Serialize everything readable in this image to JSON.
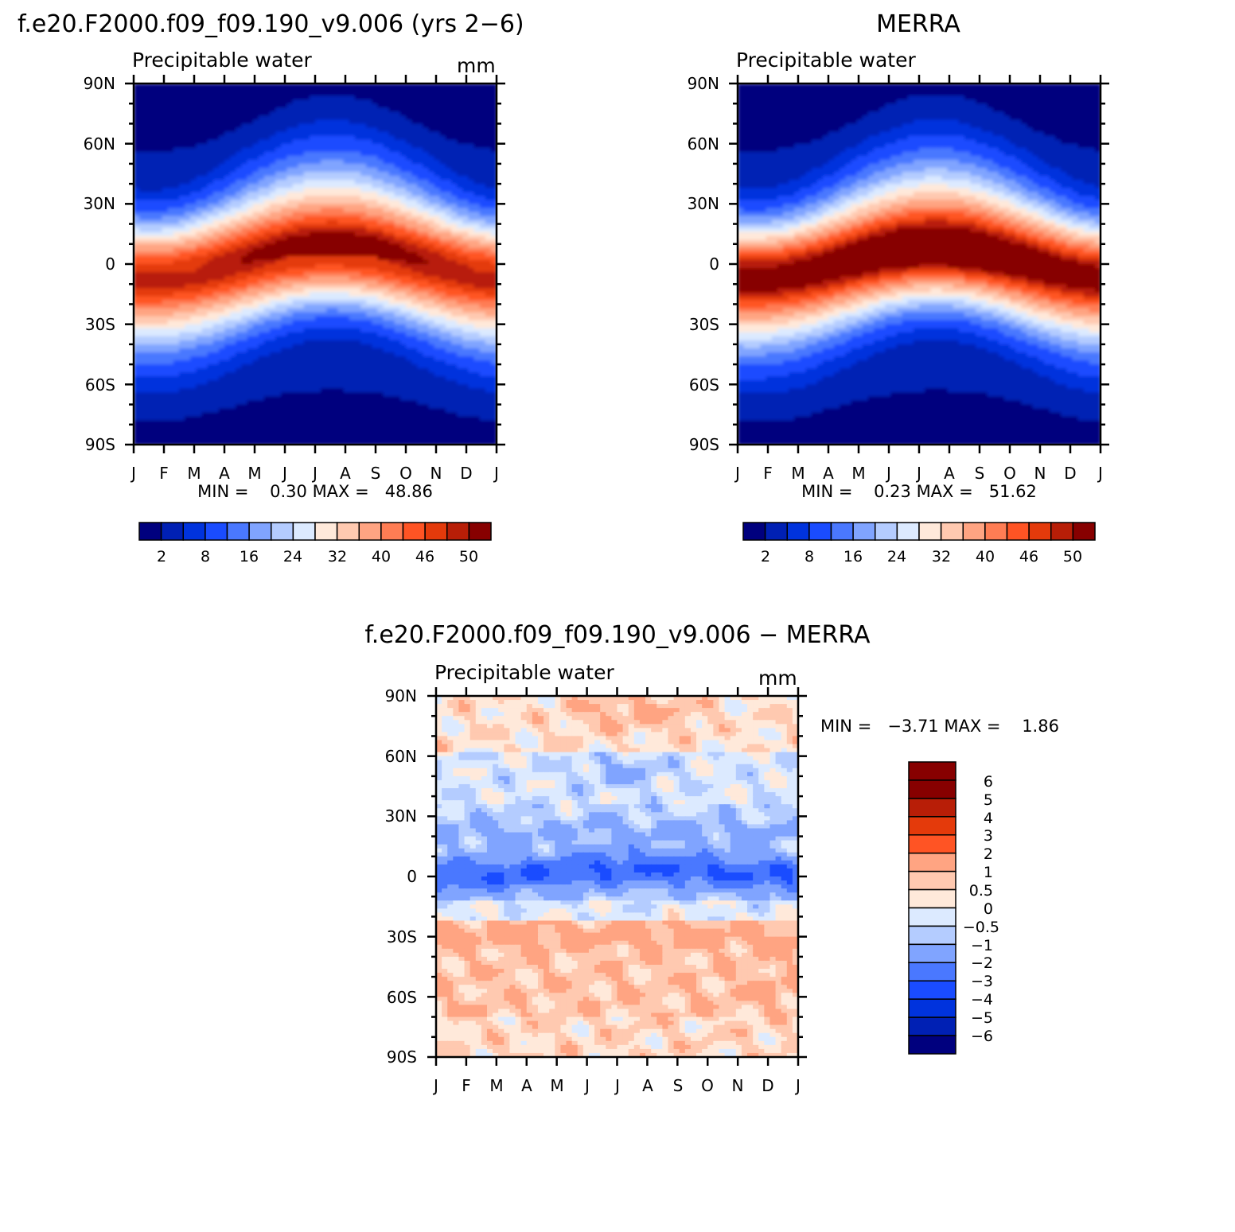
{
  "panels": [
    {
      "title": "f.e20.F2000.f09_f09.190_v9.006 (yrs 2−6)",
      "subtitle": "Precipitable water",
      "units": "mm",
      "stats": "MIN =    0.30 MAX =   48.86"
    },
    {
      "title": "MERRA",
      "subtitle": "Precipitable water",
      "units": "",
      "stats": "MIN =    0.23 MAX =   51.62"
    },
    {
      "title": "f.e20.F2000.f09_f09.190_v9.006 − MERRA",
      "subtitle": "Precipitable water",
      "units": "mm",
      "stats": "MIN =   −3.71 MAX =    1.86"
    }
  ],
  "abs_colorbar": {
    "colors": [
      "#00007e",
      "#0020b4",
      "#0033dd",
      "#1a4cff",
      "#4a78ff",
      "#80a4ff",
      "#b4ccff",
      "#dceaff",
      "#ffe9da",
      "#ffc9b0",
      "#ffa482",
      "#ff7d54",
      "#ff5424",
      "#e43a0b",
      "#b81e07",
      "#870000"
    ],
    "labels": [
      "2",
      "8",
      "16",
      "24",
      "32",
      "40",
      "46",
      "50"
    ]
  },
  "diff_colorbar": {
    "colors_top_to_bottom": [
      "#870000",
      "#b81e07",
      "#e43a0b",
      "#ff5424",
      "#ffa482",
      "#ffc9b0",
      "#ffe9da",
      "#dceaff",
      "#b4ccff",
      "#80a4ff",
      "#4a78ff",
      "#1a4cff",
      "#0033dd",
      "#0020b4",
      "#00007e"
    ],
    "labels": [
      "6",
      "5",
      "4",
      "3",
      "2",
      "1",
      "0.5",
      "0",
      "−0.5",
      "−1",
      "−2",
      "−3",
      "−4",
      "−5",
      "−6"
    ]
  },
  "chart_data": [
    {
      "type": "heatmap",
      "title": "f.e20.F2000.f09_f09.190_v9.006 (yrs 2−6)",
      "subtitle": "Precipitable water",
      "units": "mm",
      "x_ticks": [
        "J",
        "F",
        "M",
        "A",
        "M",
        "J",
        "J",
        "A",
        "S",
        "O",
        "N",
        "D",
        "J"
      ],
      "y_ticks": [
        "90N",
        "60N",
        "30N",
        "0",
        "30S",
        "60S",
        "90S"
      ],
      "ylim": [
        -90,
        90
      ],
      "min": 0.3,
      "max": 48.86,
      "levels": [
        2,
        5,
        8,
        12,
        16,
        20,
        24,
        28,
        32,
        36,
        40,
        43,
        46,
        48,
        50
      ]
    },
    {
      "type": "heatmap",
      "title": "MERRA",
      "subtitle": "Precipitable water",
      "x_ticks": [
        "J",
        "F",
        "M",
        "A",
        "M",
        "J",
        "J",
        "A",
        "S",
        "O",
        "N",
        "D",
        "J"
      ],
      "y_ticks": [
        "90N",
        "60N",
        "30N",
        "0",
        "30S",
        "60S",
        "90S"
      ],
      "ylim": [
        -90,
        90
      ],
      "min": 0.23,
      "max": 51.62,
      "levels": [
        2,
        5,
        8,
        12,
        16,
        20,
        24,
        28,
        32,
        36,
        40,
        43,
        46,
        48,
        50
      ]
    },
    {
      "type": "heatmap",
      "title": "f.e20.F2000.f09_f09.190_v9.006 − MERRA",
      "subtitle": "Precipitable water",
      "units": "mm",
      "x_ticks": [
        "J",
        "F",
        "M",
        "A",
        "M",
        "J",
        "J",
        "A",
        "S",
        "O",
        "N",
        "D",
        "J"
      ],
      "y_ticks": [
        "90N",
        "60N",
        "30N",
        "0",
        "30S",
        "60S",
        "90S"
      ],
      "ylim": [
        -90,
        90
      ],
      "min": -3.71,
      "max": 1.86,
      "levels": [
        -6,
        -5,
        -4,
        -3,
        -2,
        -1,
        -0.5,
        0,
        0.5,
        1,
        2,
        3,
        4,
        5,
        6
      ]
    }
  ]
}
